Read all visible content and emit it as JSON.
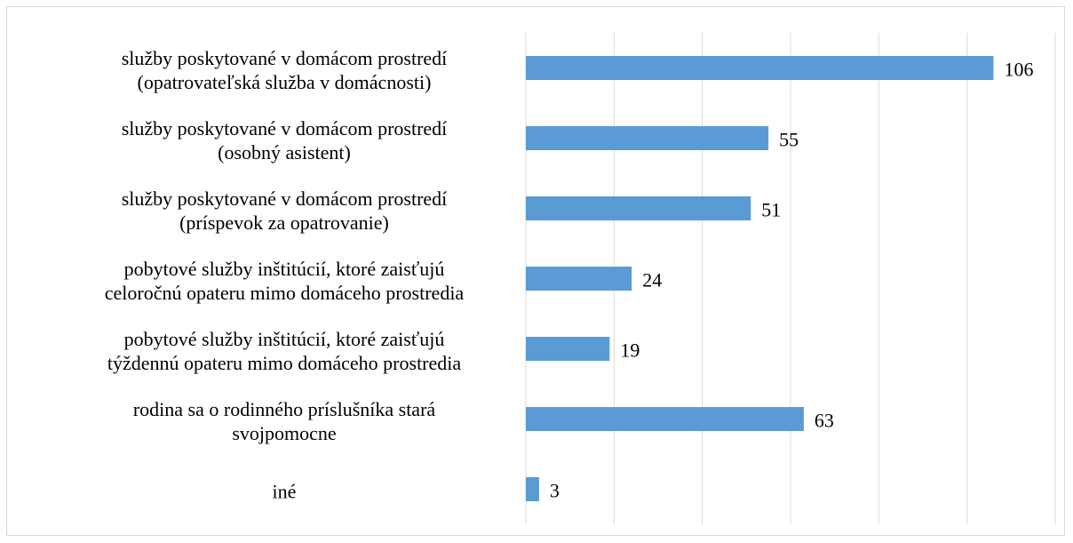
{
  "chart_data": {
    "type": "bar",
    "orientation": "horizontal",
    "categories": [
      "služby poskytované v domácom prostredí\n(opatrovateľská služba v domácnosti)",
      "služby poskytované v domácom prostredí\n(osobný asistent)",
      "služby poskytované v domácom prostredí\n(príspevok za opatrovanie)",
      "pobytové služby inštitúcií, ktoré zaisťujú\nceloročnú opateru mimo domáceho prostredia",
      "pobytové služby inštitúcií, ktoré zaisťujú\ntýždennú opateru mimo domáceho prostredia",
      "rodina sa o rodinného príslušníka stará\nsvojpomocne",
      "iné"
    ],
    "values": [
      106,
      55,
      51,
      24,
      19,
      63,
      3
    ],
    "color": "#5b9bd5",
    "xlim": [
      0,
      120
    ],
    "xticks": [
      0,
      20,
      40,
      60,
      80,
      100,
      120
    ],
    "grid": true
  }
}
